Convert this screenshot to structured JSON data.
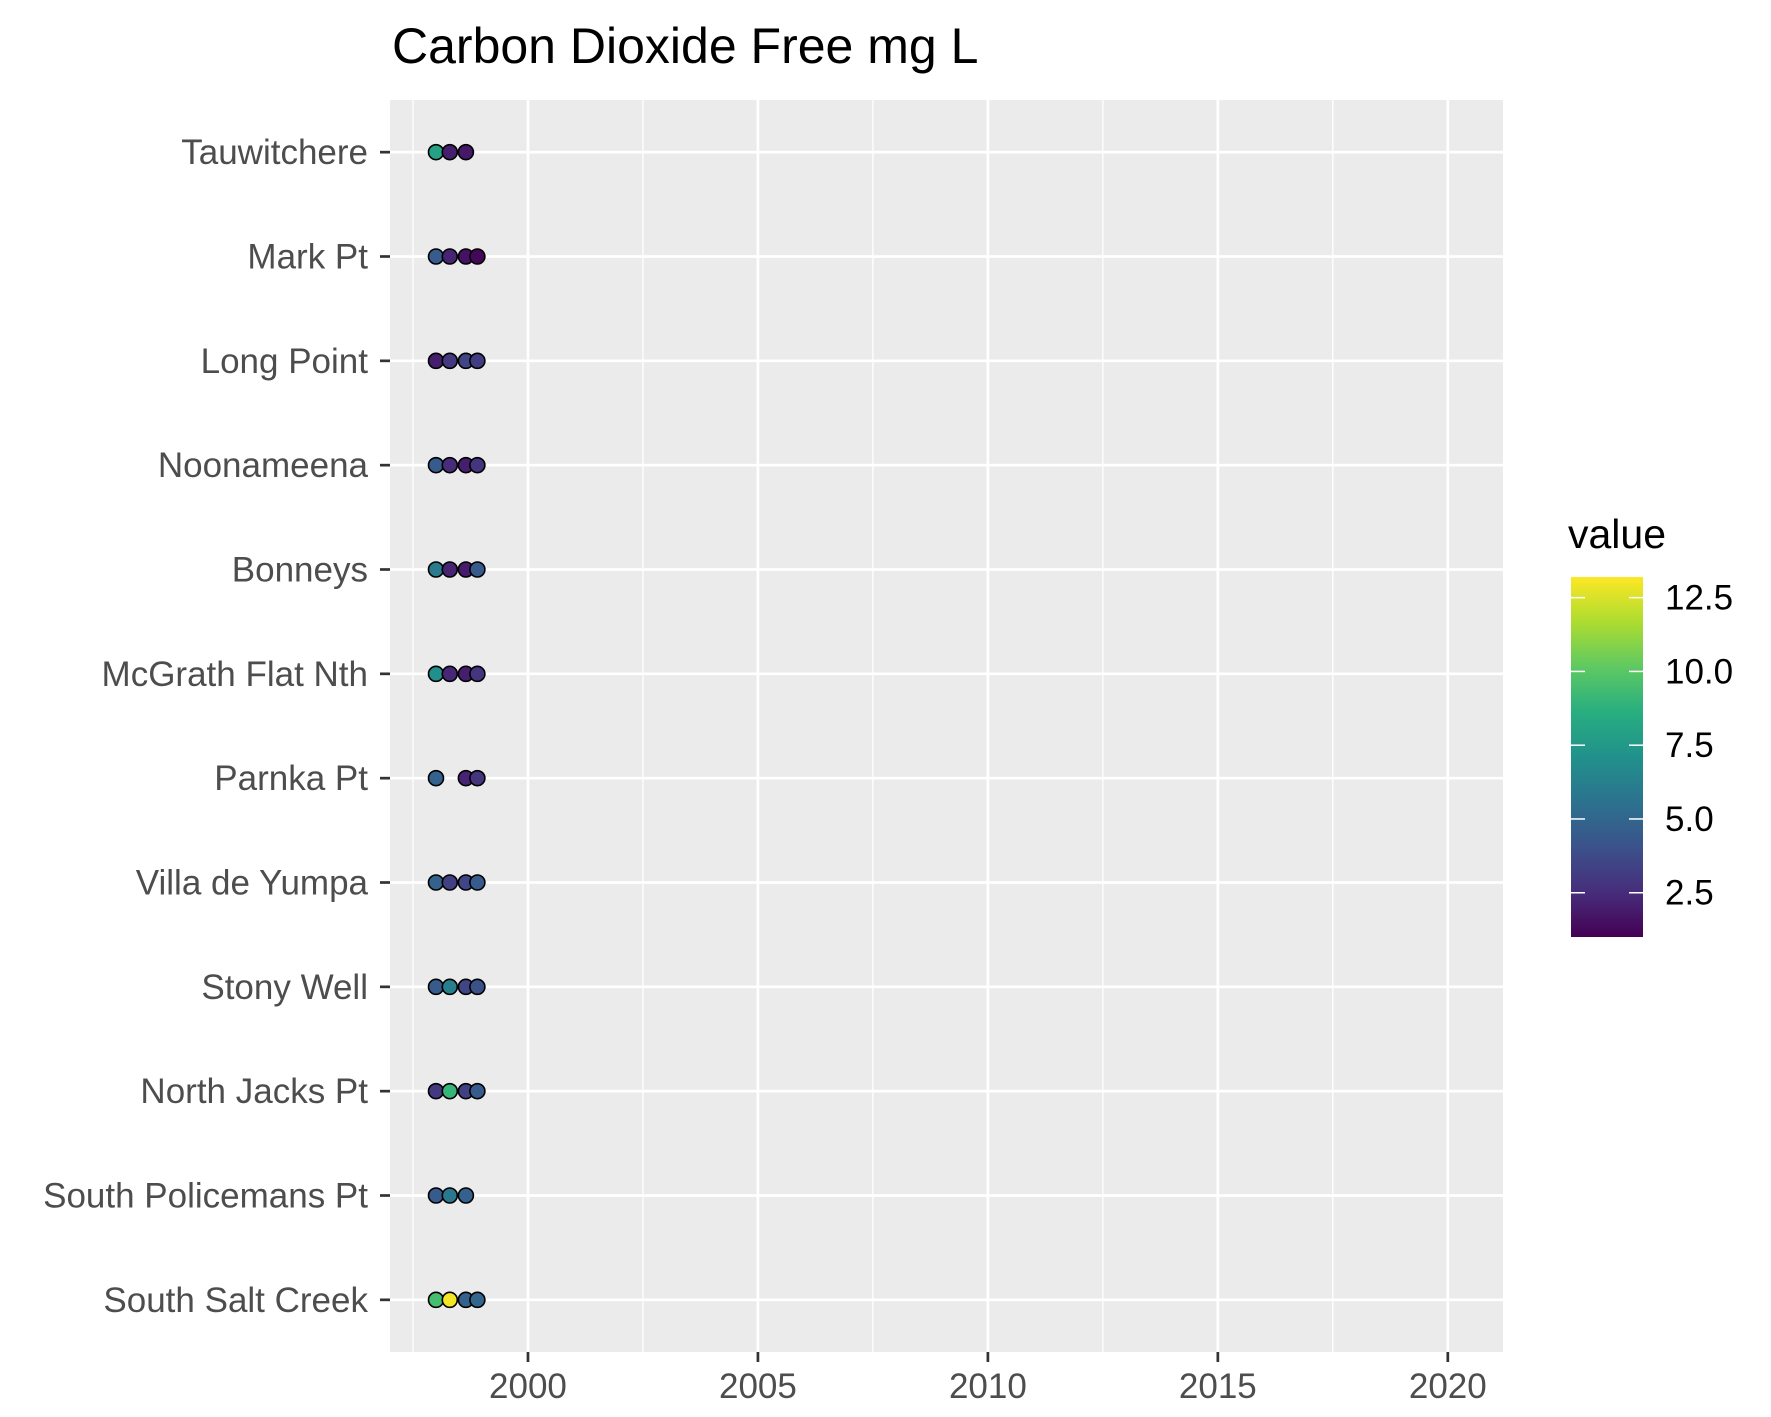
{
  "chart_data": {
    "type": "scatter",
    "title": "Carbon Dioxide Free mg L",
    "xlabel": "",
    "ylabel": "",
    "xlim": [
      1997,
      2021.2
    ],
    "x_ticks": [
      2000,
      2005,
      2010,
      2015,
      2020
    ],
    "x_tick_labels": [
      "2000",
      "2005",
      "2010",
      "2015",
      "2020"
    ],
    "sites": [
      "South Salt Creek",
      "South Policemans Pt",
      "North Jacks Pt",
      "Stony Well",
      "Villa de Yumpa",
      "Parnka Pt",
      "McGrath Flat Nth",
      "Bonneys",
      "Noonameena",
      "Long Point",
      "Mark Pt",
      "Tauwitchere"
    ],
    "colorbar": {
      "title": "value",
      "palette": "viridis",
      "min": 1.0,
      "max": 13.2,
      "ticks": [
        2.5,
        5.0,
        7.5,
        10.0,
        12.5
      ],
      "tick_labels": [
        "2.5",
        "5.0",
        "7.5",
        "10.0",
        "12.5"
      ]
    },
    "grid": true,
    "panel_background": "#ebebeb",
    "grid_color": "#ffffff",
    "point_outline": "#000000",
    "series": [
      {
        "site": "Tauwitchere",
        "points": [
          {
            "x": 1998.0,
            "value": 8.0
          },
          {
            "x": 1998.3,
            "value": 2.0
          },
          {
            "x": 1998.65,
            "value": 1.8
          }
        ]
      },
      {
        "site": "Mark Pt",
        "points": [
          {
            "x": 1998.0,
            "value": 4.5
          },
          {
            "x": 1998.3,
            "value": 2.2
          },
          {
            "x": 1998.65,
            "value": 1.6
          },
          {
            "x": 1998.9,
            "value": 1.2
          }
        ]
      },
      {
        "site": "Long Point",
        "points": [
          {
            "x": 1998.0,
            "value": 2.0
          },
          {
            "x": 1998.3,
            "value": 3.0
          },
          {
            "x": 1998.65,
            "value": 3.5
          },
          {
            "x": 1998.9,
            "value": 3.2
          }
        ]
      },
      {
        "site": "Noonameena",
        "points": [
          {
            "x": 1998.0,
            "value": 4.5
          },
          {
            "x": 1998.3,
            "value": 2.5
          },
          {
            "x": 1998.65,
            "value": 2.0
          },
          {
            "x": 1998.9,
            "value": 2.8
          }
        ]
      },
      {
        "site": "Bonneys",
        "points": [
          {
            "x": 1998.0,
            "value": 6.0
          },
          {
            "x": 1998.3,
            "value": 2.2
          },
          {
            "x": 1998.65,
            "value": 1.9
          },
          {
            "x": 1998.9,
            "value": 4.5
          }
        ]
      },
      {
        "site": "McGrath Flat Nth",
        "points": [
          {
            "x": 1998.0,
            "value": 7.0
          },
          {
            "x": 1998.3,
            "value": 2.3
          },
          {
            "x": 1998.65,
            "value": 2.0
          },
          {
            "x": 1998.9,
            "value": 2.8
          }
        ]
      },
      {
        "site": "Parnka Pt",
        "points": [
          {
            "x": 1998.0,
            "value": 4.8
          },
          {
            "x": 1998.65,
            "value": 2.2
          },
          {
            "x": 1998.9,
            "value": 2.8
          }
        ]
      },
      {
        "site": "Villa de Yumpa",
        "points": [
          {
            "x": 1998.0,
            "value": 4.8
          },
          {
            "x": 1998.3,
            "value": 3.3
          },
          {
            "x": 1998.65,
            "value": 3.5
          },
          {
            "x": 1998.9,
            "value": 4.5
          }
        ]
      },
      {
        "site": "Stony Well",
        "points": [
          {
            "x": 1998.0,
            "value": 4.5
          },
          {
            "x": 1998.3,
            "value": 6.2
          },
          {
            "x": 1998.65,
            "value": 3.5
          },
          {
            "x": 1998.9,
            "value": 4.0
          }
        ]
      },
      {
        "site": "North Jacks Pt",
        "points": [
          {
            "x": 1998.0,
            "value": 3.0
          },
          {
            "x": 1998.3,
            "value": 9.0
          },
          {
            "x": 1998.65,
            "value": 3.3
          },
          {
            "x": 1998.9,
            "value": 4.5
          }
        ]
      },
      {
        "site": "South Policemans Pt",
        "points": [
          {
            "x": 1998.0,
            "value": 4.5
          },
          {
            "x": 1998.3,
            "value": 5.8
          },
          {
            "x": 1998.65,
            "value": 4.8
          }
        ]
      },
      {
        "site": "South Salt Creek",
        "points": [
          {
            "x": 1998.0,
            "value": 9.5
          },
          {
            "x": 1998.3,
            "value": 13.0
          },
          {
            "x": 1998.65,
            "value": 4.8
          },
          {
            "x": 1998.9,
            "value": 5.0
          }
        ]
      }
    ]
  }
}
